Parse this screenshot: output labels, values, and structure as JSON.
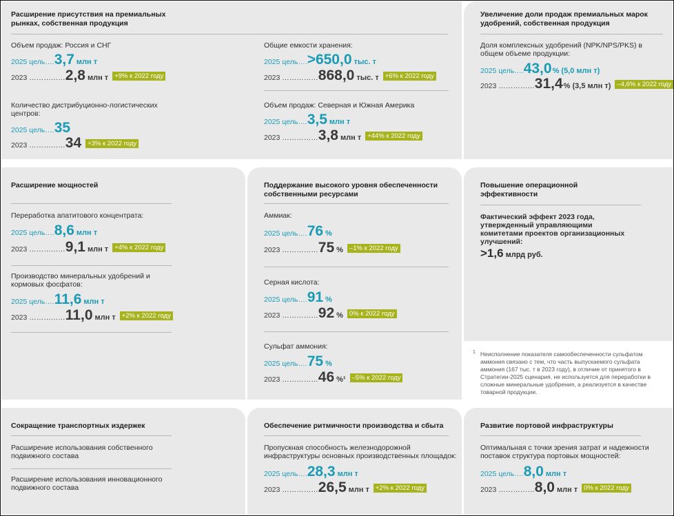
{
  "sections": {
    "premium_markets": {
      "title": "Расширение присутствия на премиальных рынках, собственная продукция",
      "metrics": [
        {
          "label": "Объем продаж: Россия и СНГ",
          "target_prefix": "2025 цель….",
          "target_value": "3,7",
          "target_unit": "млн т",
          "actual_prefix": "2023 ……………",
          "actual_value": "2,8",
          "actual_unit": "млн т",
          "badge": "+9% к 2022 году"
        },
        {
          "label": "Общие емкости хранения:",
          "target_prefix": "2025 цель….",
          "target_value": ">650,0",
          "target_unit": "тыс. т",
          "actual_prefix": "2023 ……………",
          "actual_value": "868,0",
          "actual_unit": "тыс. т",
          "badge": "+6% к 2022 году"
        },
        {
          "label": "Количество дистрибуционно-логистических центров:",
          "target_prefix": "2025 цель….",
          "target_value": "35",
          "target_unit": "",
          "actual_prefix": "2023 ……………",
          "actual_value": "34",
          "actual_unit": "",
          "badge": "+3% к 2022 году"
        },
        {
          "label": "Объем продаж: Северная и Южная Америка",
          "target_prefix": "2025 цель….",
          "target_value": "3,5",
          "target_unit": "млн т",
          "actual_prefix": "2023 ……………",
          "actual_value": "3,8",
          "actual_unit": "млн т",
          "badge": "+44% к 2022 году"
        }
      ]
    },
    "premium_brands": {
      "title": "Увеличение доли продаж премиальных марок удобрений, собственная продукция",
      "label": "Доля комплексных удобрений (NPK/NPS/PKS) в общем объеме продукции:",
      "target_prefix": "2025 цель….",
      "target_value": "43,0",
      "target_unit": "% (5,0 млн т)",
      "actual_prefix": "2023 ……………",
      "actual_value": "31,4",
      "actual_unit": "% (3,5 млн т)",
      "badge": "–4,6% к 2022 году"
    },
    "capacity": {
      "title": "Расширение мощностей",
      "metrics": [
        {
          "label": "Переработка апатитового концентрата:",
          "target_prefix": "2025 цель….",
          "target_value": "8,6",
          "target_unit": "млн т",
          "actual_prefix": "2023 ……………",
          "actual_value": "9,1",
          "actual_unit": "млн т",
          "badge": "+4% к 2022 году"
        },
        {
          "label": "Производство минеральных удобрений и кормовых фосфатов:",
          "target_prefix": "2025 цель….",
          "target_value": "11,6",
          "target_unit": "млн т",
          "actual_prefix": "2023 ……………",
          "actual_value": "11,0",
          "actual_unit": "млн т",
          "badge": "+2% к 2022 году"
        }
      ]
    },
    "resources": {
      "title": "Поддержание высокого уровня обеспеченности собственными ресурсами",
      "metrics": [
        {
          "label": "Аммиак:",
          "target_prefix": "2025 цель….",
          "target_value": "76",
          "target_unit": "%",
          "actual_prefix": "2023 ……………",
          "actual_value": "75",
          "actual_unit": "%",
          "badge": "–1% к 2022 году"
        },
        {
          "label": "Серная кислота:",
          "target_prefix": "2025 цель….",
          "target_value": "91",
          "target_unit": "%",
          "actual_prefix": "2023 ……………",
          "actual_value": "92",
          "actual_unit": "%",
          "badge": "0% к 2022 году"
        },
        {
          "label": "Сульфат аммония:",
          "target_prefix": "2025 цель….",
          "target_value": "75",
          "target_unit": "%",
          "actual_prefix": "2023 ……………",
          "actual_value": "46",
          "actual_unit": "%¹",
          "badge": "–5% к 2022 году"
        }
      ]
    },
    "efficiency": {
      "title": "Повышение операционной эффективности",
      "text": "Фактический эффект 2023 года, утвержденный управляющими комитетами проектов организационных улучшений:",
      "value": ">1,6",
      "unit": "млрд руб."
    },
    "footnote": {
      "marker": "1",
      "text": "Неисполнение показателя самообеспеченности сульфатом аммония связано с тем, что часть выпускаемого сульфата аммония (167 тыс. т в 2023 году), в отличие от принятого в Стратегии-2025 сценария, не используется для переработки в сложные минеральные удобрения, а реализуется в качестве товарной продукции."
    },
    "transport": {
      "title": "Сокращение транспортных издержек",
      "items": [
        "Расширение использования собственного подвижного состава",
        "Расширение использования инновационного подвижного состава"
      ]
    },
    "rhythm": {
      "title": "Обеспечение ритмичности производства и сбыта",
      "label": "Пропускная способность железнодорожной инфраструктуры основных производственных площадок:",
      "target_prefix": "2025 цель….",
      "target_value": "28,3",
      "target_unit": "млн т",
      "actual_prefix": "2023 ……………",
      "actual_value": "26,5",
      "actual_unit": "млн т",
      "badge": "+2% к 2022 году"
    },
    "port": {
      "title": "Развитие портовой инфраструктуры",
      "label": "Оптимальная с точки зрения затрат и надежности поставок структура портовых мощностей:",
      "target_prefix": "2025 цель….",
      "target_value": "8,0",
      "target_unit": "млн т",
      "actual_prefix": "2023 ……………",
      "actual_value": "8,0",
      "actual_unit": "млн т",
      "badge": "0% к 2022 году"
    }
  }
}
